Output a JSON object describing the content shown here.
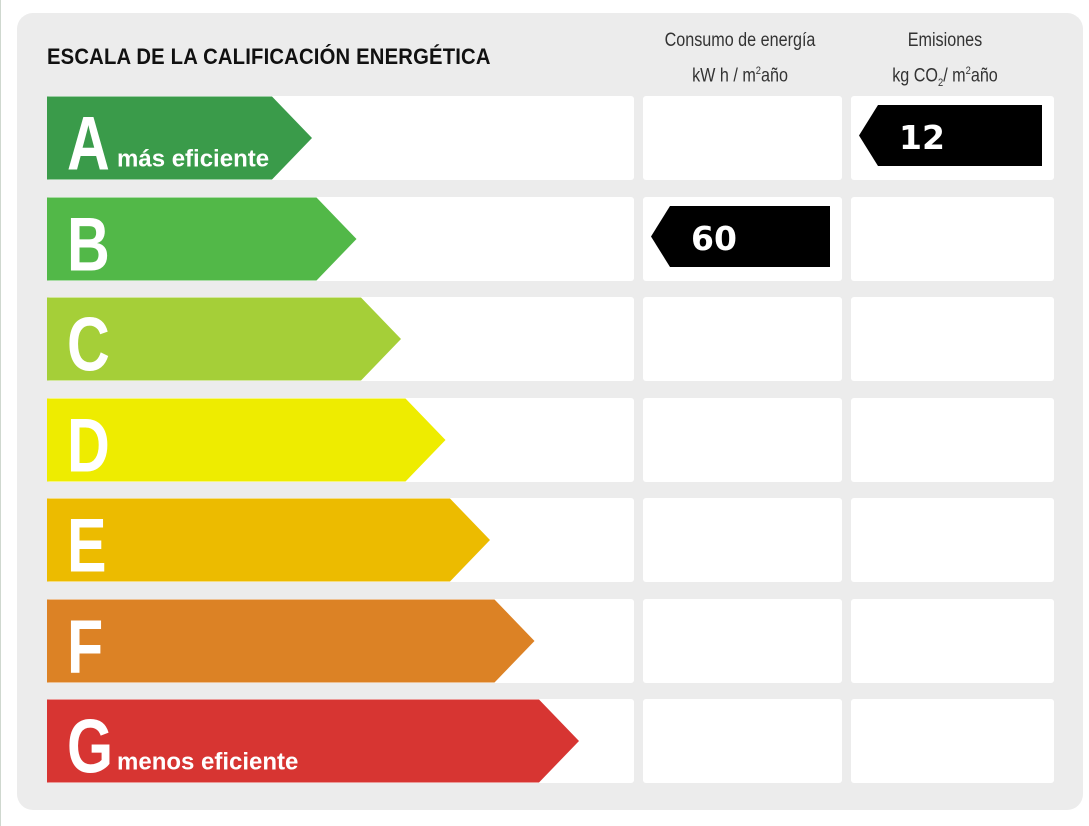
{
  "chart_data": {
    "type": "energy-rating",
    "title": "ESCALA DE LA CALIFICACIÓN ENERGÉTICA",
    "columns": [
      {
        "label_line1": "Consumo de energía",
        "label_line2_text": "kW h / m",
        "sup": "2",
        "label_line2_tail": "año"
      },
      {
        "label_line1": "Emisiones",
        "label_line2_text": "kg CO",
        "sub": "2",
        "mid": "/ m",
        "sup": "2",
        "label_line2_tail": "año"
      }
    ],
    "categories": [
      "A",
      "B",
      "C",
      "D",
      "E",
      "F",
      "G"
    ],
    "band_subtitles": {
      "A": "más eficiente",
      "G": "menos eficiente"
    },
    "band_colors": [
      "#3a9b4a",
      "#52b848",
      "#a5cf38",
      "#eeec00",
      "#ecbb00",
      "#dc8225",
      "#d73532"
    ],
    "series": [
      {
        "column": 0,
        "rating": "B",
        "value": 60
      },
      {
        "column": 1,
        "rating": "A",
        "value": 12
      }
    ],
    "marker_color": "#000000",
    "legend": "none",
    "grid": false
  }
}
